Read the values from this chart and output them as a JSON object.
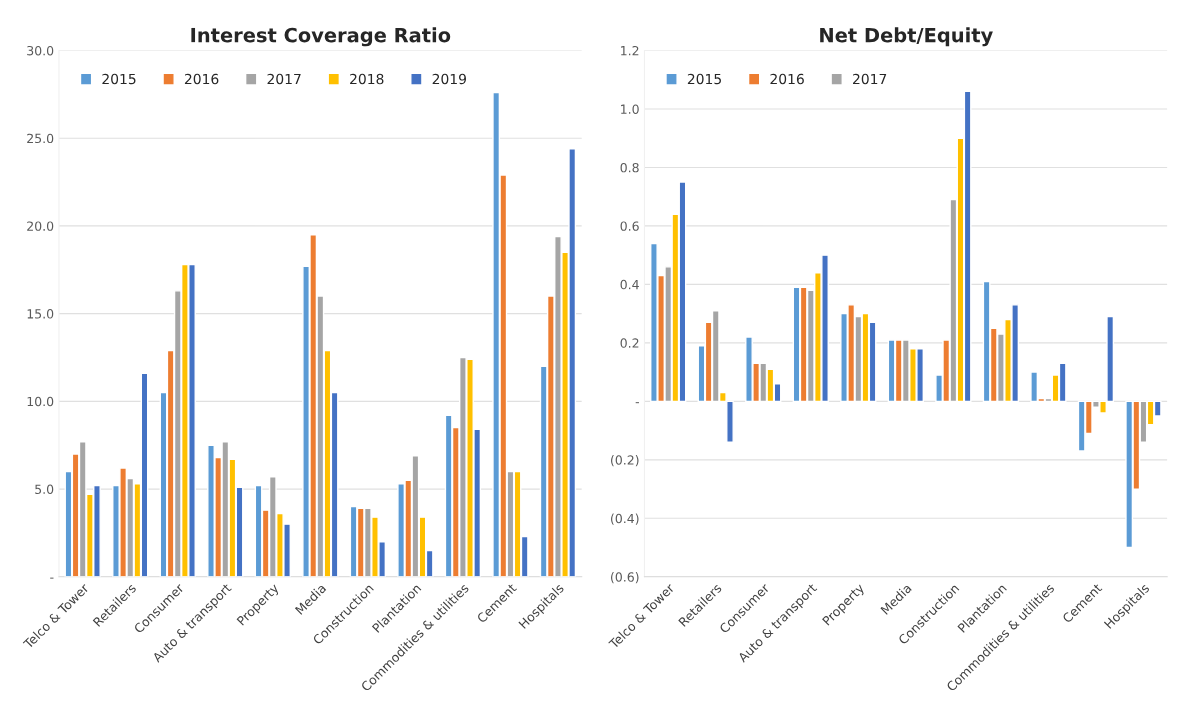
{
  "chart_data": [
    {
      "type": "bar",
      "title": "Interest Coverage Ratio",
      "categories": [
        "Telco & Tower",
        "Retailers",
        "Consumer",
        "Auto & transport",
        "Property",
        "Media",
        "Construction",
        "Plantation",
        "Commodities & utilities",
        "Cement",
        "Hospitals"
      ],
      "series": [
        {
          "name": "2015",
          "color": "#5b9bd5",
          "values": [
            6.0,
            5.2,
            10.5,
            7.5,
            5.2,
            17.7,
            4.0,
            5.3,
            9.2,
            27.6,
            12.0
          ]
        },
        {
          "name": "2016",
          "color": "#ed7d31",
          "values": [
            7.0,
            6.2,
            12.9,
            6.8,
            3.8,
            19.5,
            3.9,
            5.5,
            8.5,
            22.9,
            16.0
          ]
        },
        {
          "name": "2017",
          "color": "#a5a5a5",
          "values": [
            7.7,
            5.6,
            16.3,
            7.7,
            5.7,
            16.0,
            3.9,
            6.9,
            12.5,
            6.0,
            19.4
          ]
        },
        {
          "name": "2018",
          "color": "#ffc000",
          "values": [
            4.7,
            5.3,
            17.8,
            6.7,
            3.6,
            12.9,
            3.4,
            3.4,
            12.4,
            6.0,
            18.5
          ]
        },
        {
          "name": "2019",
          "color": "#4472c4",
          "values": [
            5.2,
            11.6,
            17.8,
            5.1,
            3.0,
            10.5,
            2.0,
            1.5,
            8.4,
            2.3,
            24.4
          ]
        }
      ],
      "ylim": [
        0,
        30
      ],
      "yticks": [
        {
          "value": 0,
          "label": "-"
        },
        {
          "value": 5,
          "label": "5.0"
        },
        {
          "value": 10,
          "label": "10.0"
        },
        {
          "value": 15,
          "label": "15.0"
        },
        {
          "value": 20,
          "label": "20.0"
        },
        {
          "value": 25,
          "label": "25.0"
        },
        {
          "value": 30,
          "label": "30.0"
        }
      ],
      "grid": "y",
      "legend": "top left"
    },
    {
      "type": "bar",
      "title": "Net Debt/Equity",
      "categories": [
        "Telco & Tower",
        "Retailers",
        "Consumer",
        "Auto & transport",
        "Property",
        "Media",
        "Construction",
        "Plantation",
        "Commodities & utilities",
        "Cement",
        "Hospitals"
      ],
      "series": [
        {
          "name": "2015",
          "color": "#5b9bd5",
          "values": [
            0.54,
            0.19,
            0.22,
            0.39,
            0.3,
            0.21,
            0.09,
            0.41,
            0.1,
            -0.17,
            -0.5
          ]
        },
        {
          "name": "2016",
          "color": "#ed7d31",
          "values": [
            0.43,
            0.27,
            0.13,
            0.39,
            0.33,
            0.21,
            0.21,
            0.25,
            0.01,
            -0.11,
            -0.3
          ]
        },
        {
          "name": "2017",
          "color": "#a5a5a5",
          "values": [
            0.46,
            0.31,
            0.13,
            0.38,
            0.29,
            0.21,
            0.69,
            0.23,
            0.01,
            -0.02,
            -0.14
          ]
        },
        {
          "color": "#ffc000",
          "values": [
            0.64,
            0.03,
            0.11,
            0.44,
            0.3,
            0.18,
            0.9,
            0.28,
            0.09,
            -0.04,
            -0.08
          ]
        },
        {
          "color": "#4472c4",
          "values": [
            0.75,
            -0.14,
            0.06,
            0.5,
            0.27,
            0.18,
            1.06,
            0.33,
            0.13,
            0.29,
            -0.05
          ]
        }
      ],
      "ylim": [
        -0.6,
        1.2
      ],
      "yticks": [
        {
          "value": -0.6,
          "label": "(0.6)"
        },
        {
          "value": -0.4,
          "label": "(0.4)"
        },
        {
          "value": -0.2,
          "label": "(0.2)"
        },
        {
          "value": 0,
          "label": "-"
        },
        0.2,
        0.4,
        0.6,
        0.8,
        {
          "value": 1.0,
          "label": "1.0"
        },
        1.2
      ],
      "grid": "y",
      "legend": "top left"
    }
  ]
}
